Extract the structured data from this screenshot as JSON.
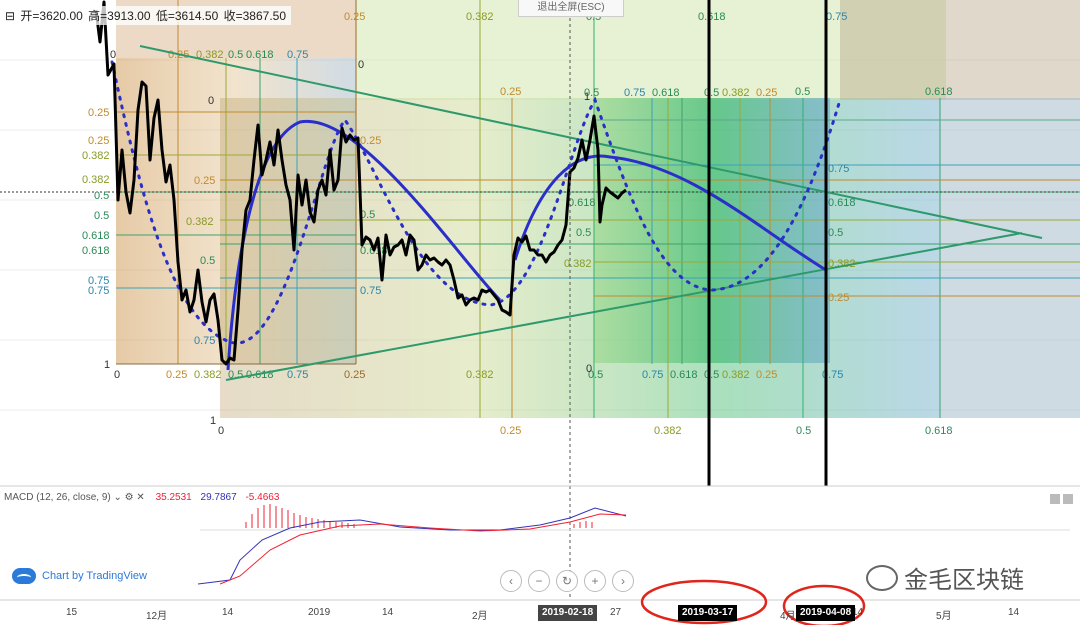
{
  "header": {
    "ohlc": {
      "open": "开=3620.00",
      "high": "高=3913.00",
      "low": "低=3614.50",
      "close": "收=3867.50"
    },
    "exit_fullscreen": "退出全屏(ESC)"
  },
  "fib_levels": [
    "0",
    "0.25",
    "0.382",
    "0.5",
    "0.618",
    "0.75",
    "1"
  ],
  "macd": {
    "label": "MACD (12, 26, close, 9)",
    "histogram": "35.2531",
    "macd": "29.7867",
    "signal": "-5.4663"
  },
  "tradingview": {
    "label": "Chart by TradingView"
  },
  "zoom_controls": [
    "‹",
    "−",
    "↻",
    "+",
    "›"
  ],
  "watermark": {
    "text": "金毛区块链"
  },
  "time_axis": {
    "labels": [
      {
        "text": "15",
        "pos": 0
      },
      {
        "text": "12月",
        "pos": 1
      },
      {
        "text": "14",
        "pos": 2
      },
      {
        "text": "2019",
        "pos": 3
      },
      {
        "text": "14",
        "pos": 4
      },
      {
        "text": "2月",
        "pos": 5
      },
      {
        "text": "27",
        "pos": 6
      },
      {
        "text": "4月",
        "pos": 7
      },
      {
        "text": "14",
        "pos": 8
      },
      {
        "text": "5月",
        "pos": 9
      },
      {
        "text": "14",
        "pos": 10
      }
    ],
    "current": "2019-02-18",
    "marked": [
      "2019-03-17",
      "2019-04-08"
    ]
  },
  "colors": {
    "price": "#000000",
    "arc": "#2b2fc9",
    "fib_line": "#2e9a6c",
    "highlight": "#e0261b"
  }
}
